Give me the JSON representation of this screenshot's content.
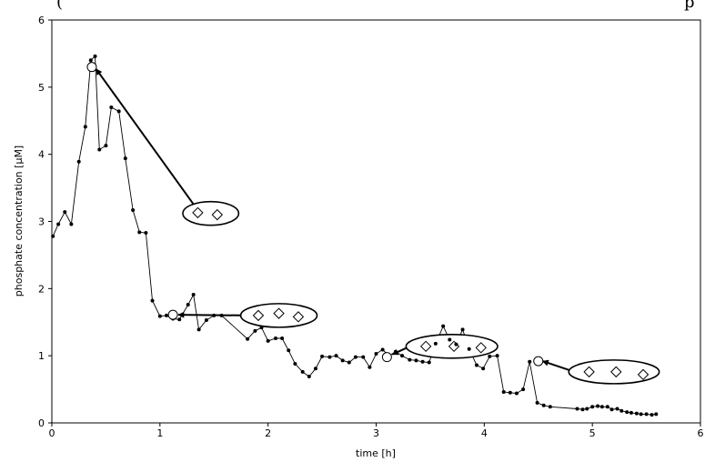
{
  "header_fragment": "(",
  "header_fragment_right": "p",
  "chart_data": {
    "type": "scatter",
    "xlabel": "time [h]",
    "ylabel": "phosphate concentration [µM]",
    "xlim": [
      0,
      6
    ],
    "ylim": [
      0,
      6
    ],
    "xticks": [
      "0",
      "1",
      "2",
      "3",
      "4",
      "5",
      "6"
    ],
    "yticks": [
      "0",
      "1",
      "2",
      "3",
      "4",
      "5",
      "6"
    ],
    "grid": false,
    "legend": "none",
    "series": [
      {
        "marker": "filled-circle",
        "line": "solid",
        "x": [
          0.01,
          0.06,
          0.12,
          0.18,
          0.25,
          0.31,
          0.36,
          0.4,
          0.44,
          0.5,
          0.55,
          0.62,
          0.68,
          0.75,
          0.81,
          0.87,
          0.93,
          1.0,
          1.06,
          1.12,
          1.18,
          1.26,
          1.31,
          1.36,
          1.43,
          1.5,
          1.57,
          1.81,
          1.88,
          1.94,
          2.0,
          2.07,
          2.13,
          2.19,
          2.25,
          2.32,
          2.38,
          2.44,
          2.5,
          2.57,
          2.63,
          2.69,
          2.75,
          2.81,
          2.88,
          2.94,
          3.0,
          3.06,
          3.12,
          3.18,
          3.24,
          3.31,
          3.37,
          3.43,
          3.49,
          3.55,
          3.62,
          3.68,
          3.74,
          3.8,
          3.86,
          3.93,
          3.99,
          4.05,
          4.12,
          4.18,
          4.24,
          4.3,
          4.36,
          4.42,
          4.49,
          4.55,
          4.61,
          4.86,
          4.91,
          4.95,
          5.0,
          5.05,
          5.09,
          5.14,
          5.18,
          5.23,
          5.27,
          5.32,
          5.36,
          5.41,
          5.45,
          5.5,
          5.55,
          5.59
        ],
        "y": [
          2.78,
          2.96,
          3.14,
          2.96,
          3.89,
          4.41,
          5.4,
          5.46,
          4.07,
          4.13,
          4.7,
          4.64,
          3.94,
          3.17,
          2.84,
          2.83,
          1.82,
          1.59,
          1.6,
          1.55,
          1.54,
          1.76,
          1.91,
          1.39,
          1.53,
          1.6,
          1.6,
          1.25,
          1.37,
          1.42,
          1.22,
          1.26,
          1.26,
          1.08,
          0.88,
          0.76,
          0.69,
          0.81,
          0.99,
          0.98,
          1.0,
          0.93,
          0.9,
          0.98,
          0.98,
          0.83,
          1.03,
          1.09,
          1.0,
          1.06,
          1.0,
          0.94,
          0.93,
          0.91,
          0.9,
          1.18,
          1.44,
          1.24,
          1.17,
          1.39,
          1.1,
          0.86,
          0.81,
          0.99,
          1.0,
          0.46,
          0.45,
          0.44,
          0.5,
          0.91,
          0.3,
          0.26,
          0.24,
          0.21,
          0.2,
          0.21,
          0.24,
          0.25,
          0.24,
          0.24,
          0.2,
          0.21,
          0.18,
          0.16,
          0.15,
          0.14,
          0.13,
          0.13,
          0.12,
          0.13
        ]
      },
      {
        "marker": "open-circle",
        "x": [
          0.37,
          1.12,
          3.1,
          4.5
        ],
        "y": [
          5.3,
          1.61,
          0.98,
          0.92
        ]
      }
    ],
    "annotations": [
      {
        "ellipse_center": [
          1.47,
          3.12
        ],
        "diamonds": [
          [
            1.35,
            3.13
          ],
          [
            1.53,
            3.1
          ]
        ],
        "arrow_to": [
          0.41,
          5.27
        ]
      },
      {
        "ellipse_center": [
          2.1,
          1.6
        ],
        "diamonds": [
          [
            1.91,
            1.6
          ],
          [
            2.1,
            1.63
          ],
          [
            2.28,
            1.58
          ]
        ],
        "arrow_to": [
          1.17,
          1.61
        ]
      },
      {
        "ellipse_center": [
          3.7,
          1.14
        ],
        "diamonds": [
          [
            3.46,
            1.14
          ],
          [
            3.72,
            1.14
          ],
          [
            3.97,
            1.12
          ]
        ],
        "arrow_to": [
          3.15,
          1.02
        ]
      },
      {
        "ellipse_center": [
          5.2,
          0.76
        ],
        "diamonds": [
          [
            4.97,
            0.76
          ],
          [
            5.22,
            0.76
          ],
          [
            5.47,
            0.72
          ]
        ],
        "arrow_to": [
          4.54,
          0.92
        ]
      }
    ]
  }
}
